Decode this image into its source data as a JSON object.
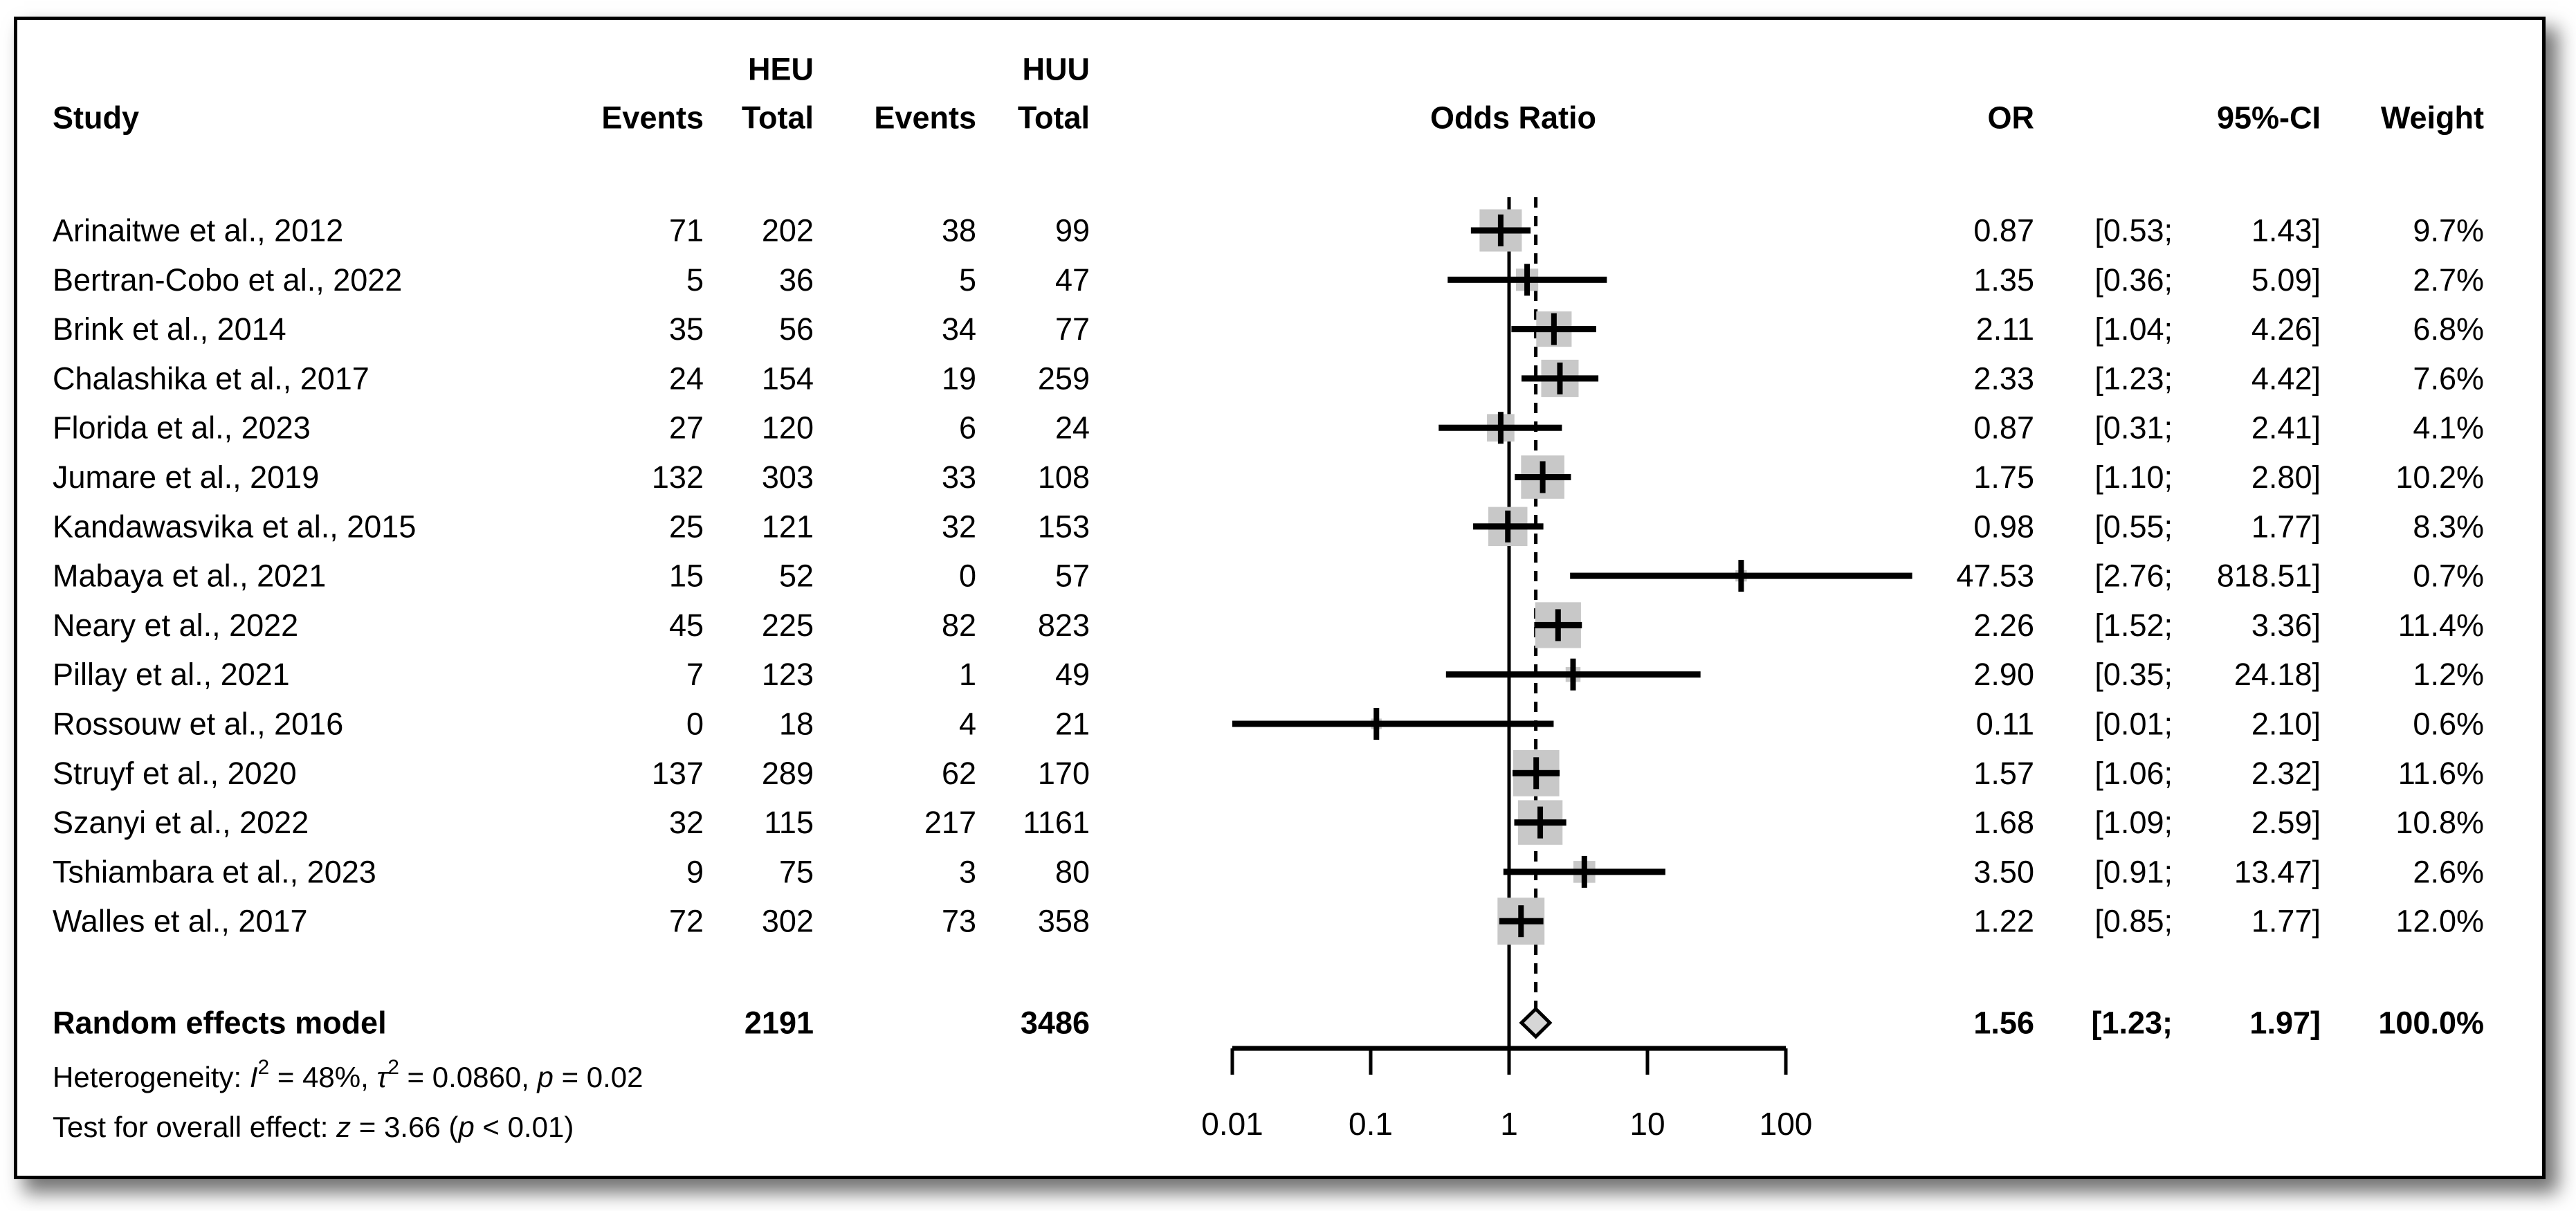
{
  "chart_data": {
    "type": "forest",
    "effect_measure": "Odds Ratio",
    "scale": "log",
    "header": {
      "study": "Study",
      "group1": "HEU",
      "group2": "HUU",
      "events1": "Events",
      "total1": "Total",
      "events2": "Events",
      "total2": "Total",
      "effect_plot": "Odds Ratio",
      "or": "OR",
      "ci": "95%-CI",
      "weight": "Weight"
    },
    "studies": [
      {
        "name": "Arinaitwe et al., 2012",
        "events_heu": "71",
        "total_heu": "202",
        "events_huu": "38",
        "total_huu": "99",
        "or": 0.87,
        "ci_low": 0.53,
        "ci_high": 1.43,
        "or_text": "0.87",
        "ci_low_text": "[0.53;",
        "ci_high_text": "1.43]",
        "weight": 9.7,
        "weight_text": "9.7%"
      },
      {
        "name": "Bertran-Cobo et al., 2022",
        "events_heu": "5",
        "total_heu": "36",
        "events_huu": "5",
        "total_huu": "47",
        "or": 1.35,
        "ci_low": 0.36,
        "ci_high": 5.09,
        "or_text": "1.35",
        "ci_low_text": "[0.36;",
        "ci_high_text": "5.09]",
        "weight": 2.7,
        "weight_text": "2.7%"
      },
      {
        "name": "Brink et al., 2014",
        "events_heu": "35",
        "total_heu": "56",
        "events_huu": "34",
        "total_huu": "77",
        "or": 2.11,
        "ci_low": 1.04,
        "ci_high": 4.26,
        "or_text": "2.11",
        "ci_low_text": "[1.04;",
        "ci_high_text": "4.26]",
        "weight": 6.8,
        "weight_text": "6.8%"
      },
      {
        "name": "Chalashika et al., 2017",
        "events_heu": "24",
        "total_heu": "154",
        "events_huu": "19",
        "total_huu": "259",
        "or": 2.33,
        "ci_low": 1.23,
        "ci_high": 4.42,
        "or_text": "2.33",
        "ci_low_text": "[1.23;",
        "ci_high_text": "4.42]",
        "weight": 7.6,
        "weight_text": "7.6%"
      },
      {
        "name": "Florida et al., 2023",
        "events_heu": "27",
        "total_heu": "120",
        "events_huu": "6",
        "total_huu": "24",
        "or": 0.87,
        "ci_low": 0.31,
        "ci_high": 2.41,
        "or_text": "0.87",
        "ci_low_text": "[0.31;",
        "ci_high_text": "2.41]",
        "weight": 4.1,
        "weight_text": "4.1%"
      },
      {
        "name": "Jumare et al., 2019",
        "events_heu": "132",
        "total_heu": "303",
        "events_huu": "33",
        "total_huu": "108",
        "or": 1.75,
        "ci_low": 1.1,
        "ci_high": 2.8,
        "or_text": "1.75",
        "ci_low_text": "[1.10;",
        "ci_high_text": "2.80]",
        "weight": 10.2,
        "weight_text": "10.2%"
      },
      {
        "name": "Kandawasvika et al., 2015",
        "events_heu": "25",
        "total_heu": "121",
        "events_huu": "32",
        "total_huu": "153",
        "or": 0.98,
        "ci_low": 0.55,
        "ci_high": 1.77,
        "or_text": "0.98",
        "ci_low_text": "[0.55;",
        "ci_high_text": "1.77]",
        "weight": 8.3,
        "weight_text": "8.3%"
      },
      {
        "name": "Mabaya et al., 2021",
        "events_heu": "15",
        "total_heu": "52",
        "events_huu": "0",
        "total_huu": "57",
        "or": 47.53,
        "ci_low": 2.76,
        "ci_high": 818.51,
        "or_text": "47.53",
        "ci_low_text": "[2.76;",
        "ci_high_text": "818.51]",
        "weight": 0.7,
        "weight_text": "0.7%"
      },
      {
        "name": "Neary et al., 2022",
        "events_heu": "45",
        "total_heu": "225",
        "events_huu": "82",
        "total_huu": "823",
        "or": 2.26,
        "ci_low": 1.52,
        "ci_high": 3.36,
        "or_text": "2.26",
        "ci_low_text": "[1.52;",
        "ci_high_text": "3.36]",
        "weight": 11.4,
        "weight_text": "11.4%"
      },
      {
        "name": "Pillay et al., 2021",
        "events_heu": "7",
        "total_heu": "123",
        "events_huu": "1",
        "total_huu": "49",
        "or": 2.9,
        "ci_low": 0.35,
        "ci_high": 24.18,
        "or_text": "2.90",
        "ci_low_text": "[0.35;",
        "ci_high_text": "24.18]",
        "weight": 1.2,
        "weight_text": "1.2%"
      },
      {
        "name": "Rossouw et al., 2016",
        "events_heu": "0",
        "total_heu": "18",
        "events_huu": "4",
        "total_huu": "21",
        "or": 0.11,
        "ci_low": 0.01,
        "ci_high": 2.1,
        "or_text": "0.11",
        "ci_low_text": "[0.01;",
        "ci_high_text": "2.10]",
        "weight": 0.6,
        "weight_text": "0.6%"
      },
      {
        "name": "Struyf et al., 2020",
        "events_heu": "137",
        "total_heu": "289",
        "events_huu": "62",
        "total_huu": "170",
        "or": 1.57,
        "ci_low": 1.06,
        "ci_high": 2.32,
        "or_text": "1.57",
        "ci_low_text": "[1.06;",
        "ci_high_text": "2.32]",
        "weight": 11.6,
        "weight_text": "11.6%"
      },
      {
        "name": "Szanyi et al., 2022",
        "events_heu": "32",
        "total_heu": "115",
        "events_huu": "217",
        "total_huu": "1161",
        "or": 1.68,
        "ci_low": 1.09,
        "ci_high": 2.59,
        "or_text": "1.68",
        "ci_low_text": "[1.09;",
        "ci_high_text": "2.59]",
        "weight": 10.8,
        "weight_text": "10.8%"
      },
      {
        "name": "Tshiambara et al., 2023",
        "events_heu": "9",
        "total_heu": "75",
        "events_huu": "3",
        "total_huu": "80",
        "or": 3.5,
        "ci_low": 0.91,
        "ci_high": 13.47,
        "or_text": "3.50",
        "ci_low_text": "[0.91;",
        "ci_high_text": "13.47]",
        "weight": 2.6,
        "weight_text": "2.6%"
      },
      {
        "name": "Walles et al., 2017",
        "events_heu": "72",
        "total_heu": "302",
        "events_huu": "73",
        "total_huu": "358",
        "or": 1.22,
        "ci_low": 0.85,
        "ci_high": 1.77,
        "or_text": "1.22",
        "ci_low_text": "[0.85;",
        "ci_high_text": "1.77]",
        "weight": 12.0,
        "weight_text": "12.0%"
      }
    ],
    "summary": {
      "label": "Random effects model",
      "total_heu": "2191",
      "total_huu": "3486",
      "or": 1.56,
      "ci_low": 1.23,
      "ci_high": 1.97,
      "or_text": "1.56",
      "ci_low_text": "[1.23;",
      "ci_high_text": "1.97]",
      "weight_text": "100.0%"
    },
    "footnotes": {
      "heterogeneity": {
        "segments": [
          {
            "t": "Heterogeneity: "
          },
          {
            "t": "I",
            "italic": true
          },
          {
            "t": "2",
            "sup": true
          },
          {
            "t": " = 48%, "
          },
          {
            "t": "τ",
            "italic": true
          },
          {
            "t": "2",
            "sup": true
          },
          {
            "t": " = 0.0860, "
          },
          {
            "t": "p",
            "italic": true
          },
          {
            "t": " = 0.02"
          }
        ]
      },
      "overall_effect": {
        "segments": [
          {
            "t": "Test for overall effect: "
          },
          {
            "t": "z",
            "italic": true
          },
          {
            "t": " = 3.66 ("
          },
          {
            "t": "p",
            "italic": true
          },
          {
            "t": " < 0.01)"
          }
        ]
      }
    },
    "axis": {
      "ticks": [
        0.01,
        0.1,
        1,
        10,
        100
      ],
      "tick_labels": [
        "0.01",
        "0.1",
        "1",
        "10",
        "100"
      ],
      "ref_line": 1,
      "xlim": [
        0.01,
        100
      ]
    },
    "colors": {
      "square": "#c8c8c8",
      "diamond_fill": "#d6d6d6",
      "line": "#000000",
      "text": "#000000"
    }
  }
}
